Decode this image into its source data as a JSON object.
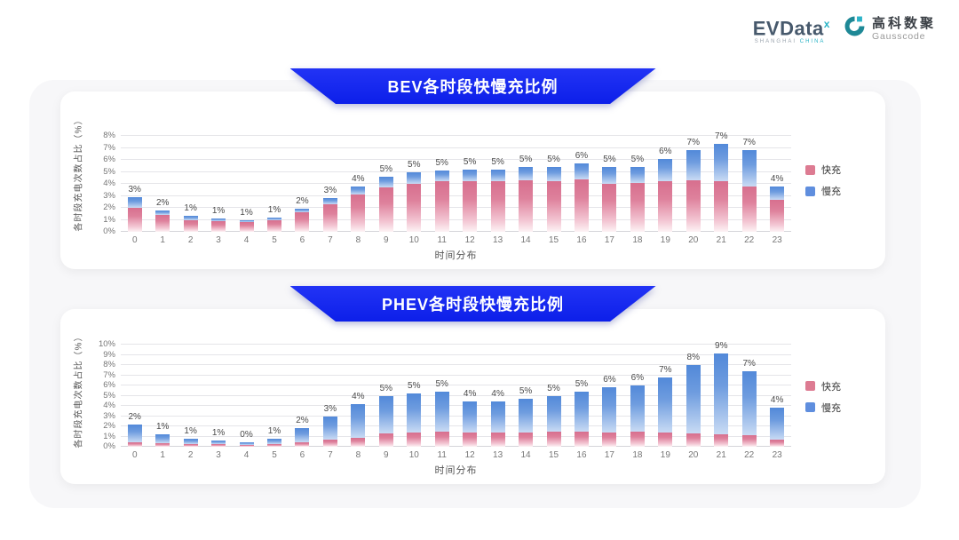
{
  "header": {
    "evdata_brand": "EVData",
    "evdata_sup": "x",
    "evdata_sub1": "SHANGHAI ",
    "evdata_sub2": "CHINA",
    "gausscode_cn": "高科数聚",
    "gausscode_en": "Gausscode"
  },
  "colors": {
    "banner_blue": "#1b2bf0",
    "fast_pink": "#dd7b92",
    "slow_blue": "#5f8ede",
    "card_bg": "#ffffff",
    "panel_bg": "#f7f7f9"
  },
  "chart_data": [
    {
      "id": "bev",
      "type": "bar",
      "stacked": true,
      "title": "BEV各时段快慢充比例",
      "xlabel": "时间分布",
      "ylabel": "各时段充电次数占比（%）",
      "ylim": [
        0,
        8
      ],
      "ytick_step": 1,
      "ytick_suffix": "%",
      "grid": "horizontal",
      "legend_position": "right",
      "categories": [
        "0",
        "1",
        "2",
        "3",
        "4",
        "5",
        "6",
        "7",
        "8",
        "9",
        "10",
        "11",
        "12",
        "13",
        "14",
        "15",
        "16",
        "17",
        "18",
        "19",
        "20",
        "21",
        "22",
        "23"
      ],
      "series": [
        {
          "name": "快充",
          "key": "fast",
          "color": "#dd7b92",
          "values": [
            2.0,
            1.4,
            1.0,
            0.9,
            0.85,
            1.0,
            1.6,
            2.3,
            3.1,
            3.7,
            4.0,
            4.2,
            4.2,
            4.2,
            4.3,
            4.2,
            4.4,
            4.0,
            4.1,
            4.2,
            4.3,
            4.2,
            3.8,
            2.7
          ]
        },
        {
          "name": "慢充",
          "key": "slow",
          "color": "#5f8ede",
          "values": [
            0.9,
            0.4,
            0.3,
            0.2,
            0.1,
            0.2,
            0.3,
            0.5,
            0.7,
            0.9,
            1.0,
            0.9,
            1.0,
            1.0,
            1.1,
            1.2,
            1.3,
            1.4,
            1.3,
            1.9,
            2.5,
            3.1,
            3.0,
            1.1
          ]
        }
      ],
      "total_labels": [
        "3%",
        "2%",
        "1%",
        "1%",
        "1%",
        "1%",
        "2%",
        "3%",
        "4%",
        "5%",
        "5%",
        "5%",
        "5%",
        "5%",
        "5%",
        "5%",
        "6%",
        "5%",
        "5%",
        "6%",
        "7%",
        "7%",
        "7%",
        "4%"
      ]
    },
    {
      "id": "phev",
      "type": "bar",
      "stacked": true,
      "title": "PHEV各时段快慢充比例",
      "xlabel": "时间分布",
      "ylabel": "各时段充电次数占比（%）",
      "ylim": [
        0,
        10
      ],
      "ytick_step": 1,
      "ytick_suffix": "%",
      "grid": "horizontal",
      "legend_position": "right",
      "categories": [
        "0",
        "1",
        "2",
        "3",
        "4",
        "5",
        "6",
        "7",
        "8",
        "9",
        "10",
        "11",
        "12",
        "13",
        "14",
        "15",
        "16",
        "17",
        "18",
        "19",
        "20",
        "21",
        "22",
        "23"
      ],
      "series": [
        {
          "name": "快充",
          "key": "fast",
          "color": "#dd7b92",
          "values": [
            0.45,
            0.35,
            0.3,
            0.3,
            0.15,
            0.3,
            0.45,
            0.7,
            0.9,
            1.3,
            1.4,
            1.5,
            1.4,
            1.4,
            1.4,
            1.5,
            1.5,
            1.4,
            1.5,
            1.4,
            1.3,
            1.2,
            1.1,
            0.7
          ]
        },
        {
          "name": "慢充",
          "key": "slow",
          "color": "#5f8ede",
          "values": [
            1.75,
            0.85,
            0.5,
            0.35,
            0.3,
            0.5,
            1.35,
            2.3,
            3.3,
            3.7,
            3.8,
            3.9,
            3.0,
            3.0,
            3.3,
            3.5,
            3.9,
            4.4,
            4.5,
            5.4,
            6.7,
            7.9,
            6.3,
            3.1
          ]
        }
      ],
      "total_labels": [
        "2%",
        "1%",
        "1%",
        "1%",
        "0%",
        "1%",
        "2%",
        "3%",
        "4%",
        "5%",
        "5%",
        "5%",
        "4%",
        "4%",
        "5%",
        "5%",
        "5%",
        "6%",
        "6%",
        "7%",
        "8%",
        "9%",
        "7%",
        "4%"
      ]
    }
  ]
}
